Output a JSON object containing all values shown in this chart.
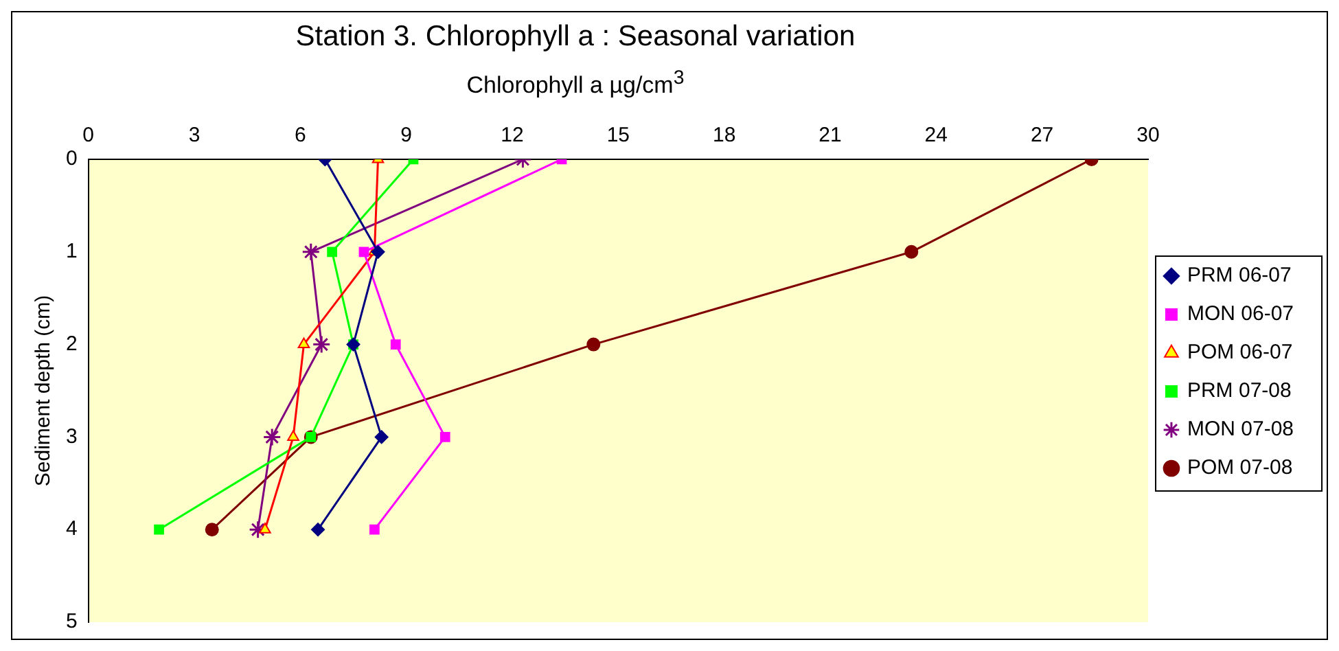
{
  "chart_data": {
    "type": "line",
    "title": "Station 3. Chlorophyll a : Seasonal variation",
    "xlabel": "Chlorophyll a µg/cm$^{3}$",
    "ylabel": "Sediment depth (cm)",
    "orientation": "horizontal",
    "x": [
      0,
      1,
      2,
      3,
      4
    ],
    "xlim": [
      0,
      30
    ],
    "xticks": [
      0,
      3,
      6,
      9,
      12,
      15,
      18,
      21,
      24,
      27,
      30
    ],
    "ylim": [
      5,
      0
    ],
    "yticks": [
      0,
      1,
      2,
      3,
      4,
      5
    ],
    "grid": false,
    "legend": "right",
    "line_style": "solid",
    "series": [
      {
        "name": "PRM 06-07",
        "color": "#000080",
        "marker": "diamond",
        "values": [
          6.7,
          8.2,
          7.5,
          8.3,
          6.5
        ]
      },
      {
        "name": "MON 06-07",
        "color": "#ff00ff",
        "marker": "square",
        "values": [
          13.4,
          7.8,
          8.7,
          10.1,
          8.1
        ]
      },
      {
        "name": "POM 06-07",
        "color": "#ff0000",
        "marker": "triangle",
        "values": [
          8.2,
          8.1,
          6.1,
          5.8,
          5.0
        ]
      },
      {
        "name": "PRM 07-08",
        "color": "#00ff00",
        "marker": "square",
        "values": [
          9.2,
          6.9,
          7.5,
          6.3,
          2.0
        ]
      },
      {
        "name": "MON 07-08",
        "color": "#800080",
        "marker": "cross",
        "values": [
          12.3,
          6.3,
          6.6,
          5.2,
          4.8
        ]
      },
      {
        "name": "POM 07-08",
        "color": "#800000",
        "marker": "circle",
        "values": [
          28.4,
          23.3,
          14.3,
          6.3,
          3.5
        ]
      }
    ]
  }
}
